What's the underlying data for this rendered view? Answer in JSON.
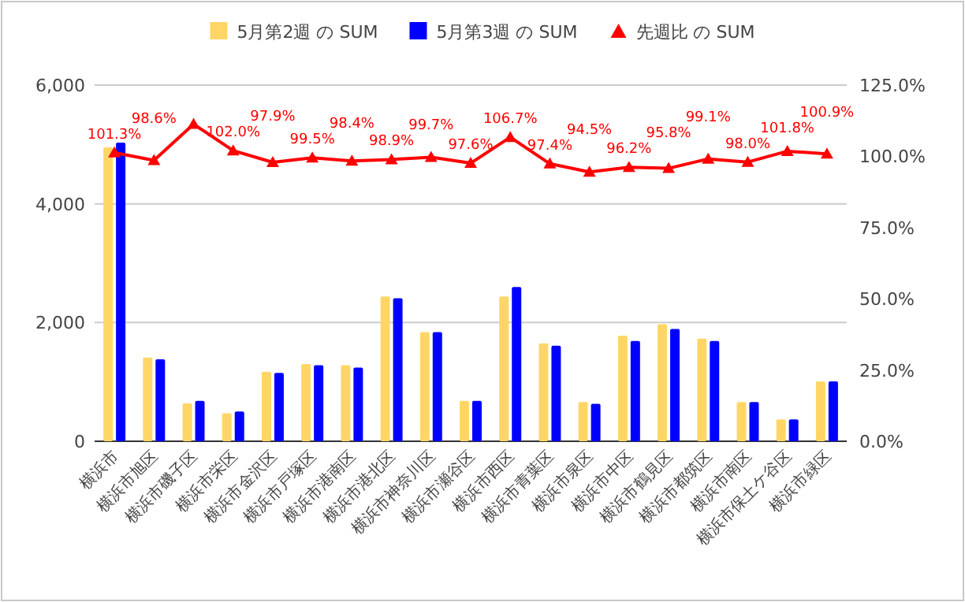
{
  "chart_data": {
    "type": "bar",
    "categories": [
      "横浜市",
      "横浜市旭区",
      "横浜市磯子区",
      "横浜市栄区",
      "横浜市金沢区",
      "横浜市戸塚区",
      "横浜市港南区",
      "横浜市港北区",
      "横浜市神奈川区",
      "横浜市瀬谷区",
      "横浜市西区",
      "横浜市青葉区",
      "横浜市泉区",
      "横浜市中区",
      "横浜市鶴見区",
      "横浜市都筑区",
      "横浜市南区",
      "横浜市保土ケ谷区",
      "横浜市緑区"
    ],
    "series": [
      {
        "name": "5月第2週 の SUM",
        "color": "#ffd666",
        "values": [
          4950,
          1410,
          640,
          470,
          1170,
          1300,
          1280,
          2440,
          1840,
          680,
          2440,
          1650,
          660,
          1780,
          1970,
          1730,
          660,
          370,
          1010
        ]
      },
      {
        "name": "5月第3週 の SUM",
        "color": "#0000ff",
        "values": [
          5030,
          1380,
          680,
          500,
          1150,
          1280,
          1240,
          2410,
          1840,
          680,
          2600,
          1610,
          630,
          1690,
          1890,
          1690,
          660,
          370,
          1010
        ]
      },
      {
        "name": "先週比 の SUM",
        "type": "line",
        "axis": "y2",
        "color": "#ff0000",
        "marker": "triangle",
        "values": [
          101.3,
          98.6,
          111.3,
          102.0,
          97.9,
          99.5,
          98.4,
          98.9,
          99.7,
          97.6,
          106.7,
          97.4,
          94.5,
          96.2,
          95.8,
          99.1,
          98.0,
          101.8,
          100.9
        ],
        "value_labels": [
          "101.3%",
          "98.6%",
          null,
          "102.0%",
          "97.9%",
          "99.5%",
          "98.4%",
          "98.9%",
          "99.7%",
          "97.6%",
          "106.7%",
          "97.4%",
          "94.5%",
          "96.2%",
          "95.8%",
          "99.1%",
          "98.0%",
          "101.8%",
          "100.9%"
        ]
      }
    ],
    "ylim": [
      0,
      6000
    ],
    "yticks": [
      {
        "value": 0,
        "label": "0"
      },
      {
        "value": 2000,
        "label": "2,000"
      },
      {
        "value": 4000,
        "label": "4,000"
      },
      {
        "value": 6000,
        "label": "6,000"
      }
    ],
    "y2lim": [
      0,
      125
    ],
    "y2ticks": [
      {
        "value": 0,
        "label": "0.0%"
      },
      {
        "value": 25,
        "label": "25.0%"
      },
      {
        "value": 50,
        "label": "50.0%"
      },
      {
        "value": 75,
        "label": "75.0%"
      },
      {
        "value": 100,
        "label": "100.0%"
      },
      {
        "value": 125,
        "label": "125.0%"
      }
    ],
    "grid": "y",
    "legend": "top"
  }
}
